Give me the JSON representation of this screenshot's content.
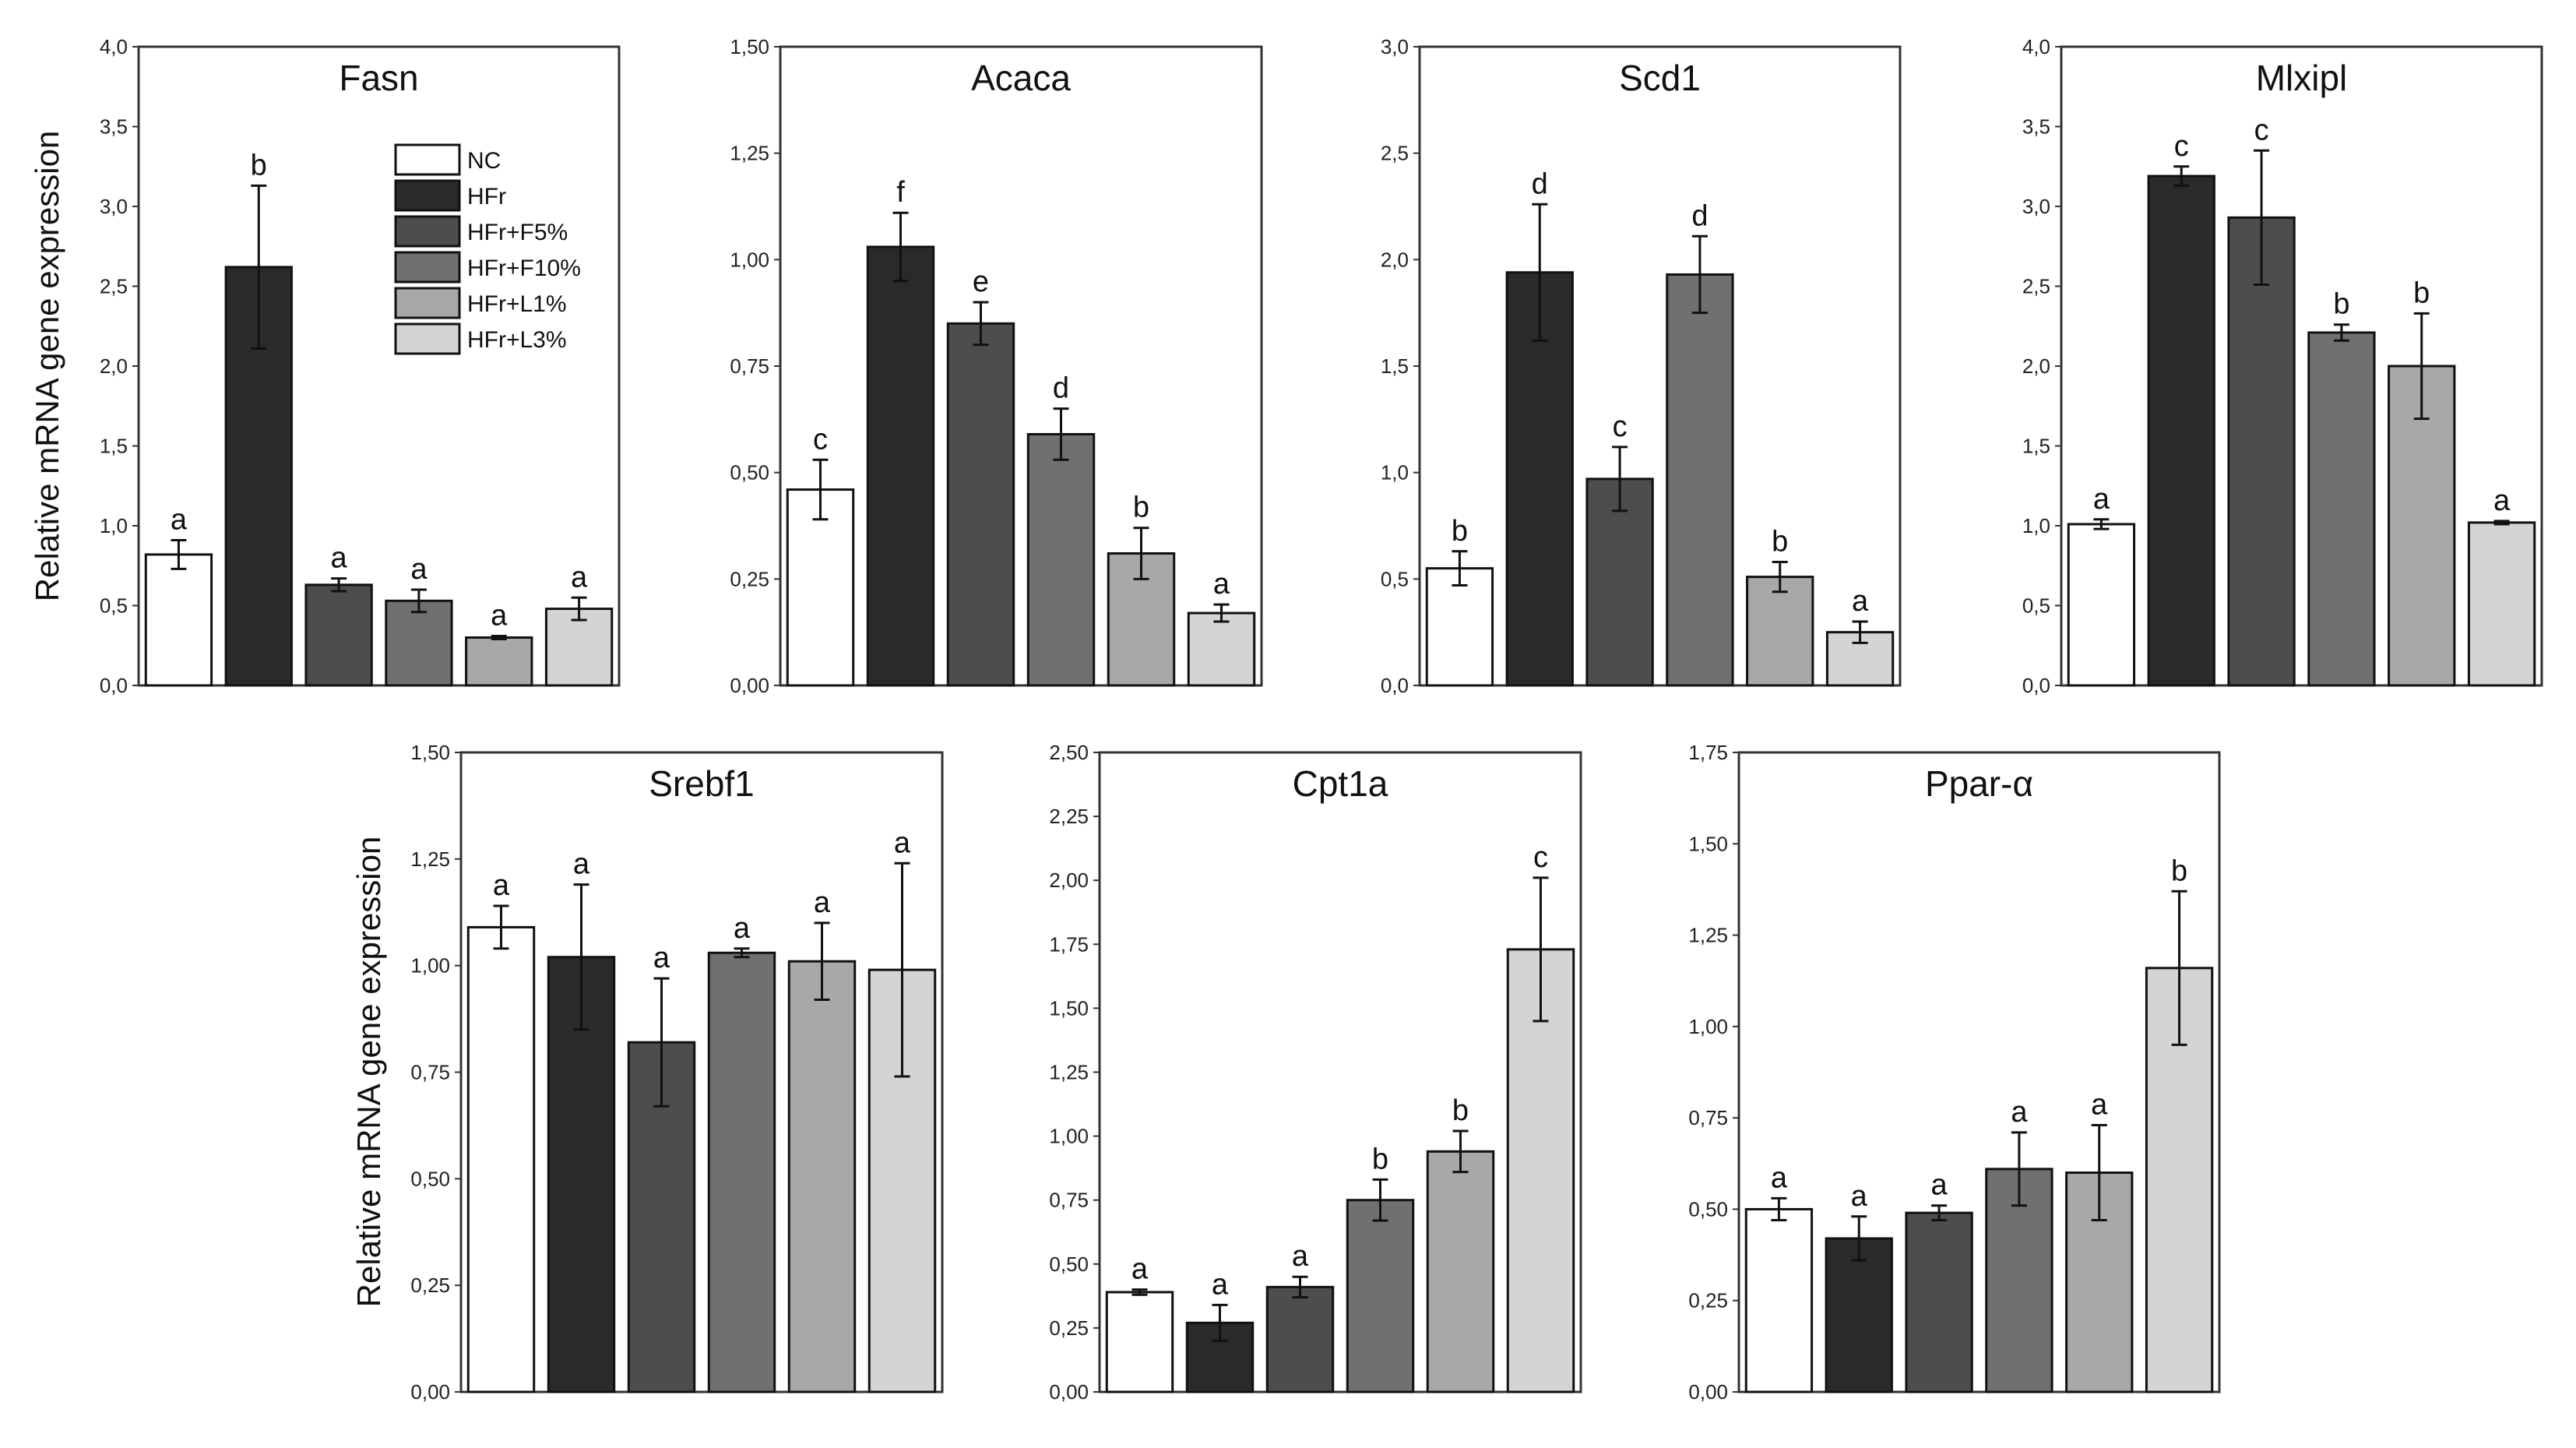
{
  "legend": [
    {
      "label": "NC",
      "color": "#ffffff"
    },
    {
      "label": "HFr",
      "color": "#2a2a2a"
    },
    {
      "label": "HFr+F5%",
      "color": "#4d4d4d"
    },
    {
      "label": "HFr+F10%",
      "color": "#707070"
    },
    {
      "label": "HFr+L1%",
      "color": "#a8a8a8"
    },
    {
      "label": "HFr+L3%",
      "color": "#d4d4d4"
    }
  ],
  "ylabel": "Relative mRNA gene expression",
  "chart_data": [
    {
      "type": "bar",
      "title": "Fasn",
      "categories": [
        "NC",
        "HFr",
        "HFr+F5%",
        "HFr+F10%",
        "HFr+L1%",
        "HFr+L3%"
      ],
      "values": [
        0.82,
        2.62,
        0.63,
        0.53,
        0.3,
        0.48
      ],
      "errors": [
        0.09,
        0.51,
        0.04,
        0.07,
        0.01,
        0.07
      ],
      "letters": [
        "a",
        "b",
        "a",
        "a",
        "a",
        "a"
      ],
      "ylim": [
        0,
        4.0
      ],
      "yticks": [
        "0,0",
        "0,5",
        "1,0",
        "1,5",
        "2,0",
        "2,5",
        "3,0",
        "3,5",
        "4,0"
      ],
      "ylabel": "Relative mRNA gene expression",
      "legend": "top-right"
    },
    {
      "type": "bar",
      "title": "Acaca",
      "categories": [
        "NC",
        "HFr",
        "HFr+F5%",
        "HFr+F10%",
        "HFr+L1%",
        "HFr+L3%"
      ],
      "values": [
        0.46,
        1.03,
        0.85,
        0.59,
        0.31,
        0.17
      ],
      "errors": [
        0.07,
        0.08,
        0.05,
        0.06,
        0.06,
        0.02
      ],
      "letters": [
        "c",
        "f",
        "e",
        "d",
        "b",
        "a"
      ],
      "ylim": [
        0,
        1.5
      ],
      "yticks": [
        "0,00",
        "0,25",
        "0,50",
        "0,75",
        "1,00",
        "1,25",
        "1,50"
      ]
    },
    {
      "type": "bar",
      "title": "Scd1",
      "categories": [
        "NC",
        "HFr",
        "HFr+F5%",
        "HFr+F10%",
        "HFr+L1%",
        "HFr+L3%"
      ],
      "values": [
        0.55,
        1.94,
        0.97,
        1.93,
        0.51,
        0.25
      ],
      "errors": [
        0.08,
        0.32,
        0.15,
        0.18,
        0.07,
        0.05
      ],
      "letters": [
        "b",
        "d",
        "c",
        "d",
        "b",
        "a"
      ],
      "ylim": [
        0,
        3.0
      ],
      "yticks": [
        "0,0",
        "0,5",
        "1,0",
        "1,5",
        "2,0",
        "2,5",
        "3,0"
      ]
    },
    {
      "type": "bar",
      "title": "Mlxipl",
      "categories": [
        "NC",
        "HFr",
        "HFr+F5%",
        "HFr+F10%",
        "HFr+L1%",
        "HFr+L3%"
      ],
      "values": [
        1.01,
        3.19,
        2.93,
        2.21,
        2.0,
        1.02
      ],
      "errors": [
        0.03,
        0.06,
        0.42,
        0.05,
        0.33,
        0.01
      ],
      "letters": [
        "a",
        "c",
        "c",
        "b",
        "b",
        "a"
      ],
      "ylim": [
        0,
        4.0
      ],
      "yticks": [
        "0,0",
        "0,5",
        "1,0",
        "1,5",
        "2,0",
        "2,5",
        "3,0",
        "3,5",
        "4,0"
      ]
    },
    {
      "type": "bar",
      "title": "Srebf1",
      "categories": [
        "NC",
        "HFr",
        "HFr+F5%",
        "HFr+F10%",
        "HFr+L1%",
        "HFr+L3%"
      ],
      "values": [
        1.09,
        1.02,
        0.82,
        1.03,
        1.01,
        0.99
      ],
      "errors": [
        0.05,
        0.17,
        0.15,
        0.01,
        0.09,
        0.25
      ],
      "letters": [
        "a",
        "a",
        "a",
        "a",
        "a",
        "a"
      ],
      "ylim": [
        0,
        1.5
      ],
      "yticks": [
        "0,00",
        "0,25",
        "0,50",
        "0,75",
        "1,00",
        "1,25",
        "1,50"
      ],
      "ylabel": "Relative mRNA gene expression"
    },
    {
      "type": "bar",
      "title": "Cpt1a",
      "categories": [
        "NC",
        "HFr",
        "HFr+F5%",
        "HFr+F10%",
        "HFr+L1%",
        "HFr+L3%"
      ],
      "values": [
        0.39,
        0.27,
        0.41,
        0.75,
        0.94,
        1.73
      ],
      "errors": [
        0.01,
        0.07,
        0.04,
        0.08,
        0.08,
        0.28
      ],
      "letters": [
        "a",
        "a",
        "a",
        "b",
        "b",
        "c"
      ],
      "ylim": [
        0,
        2.5
      ],
      "yticks": [
        "0,00",
        "0,25",
        "0,50",
        "0,75",
        "1,00",
        "1,25",
        "1,50",
        "1,75",
        "2,00",
        "2,25",
        "2,50"
      ]
    },
    {
      "type": "bar",
      "title": "Ppar-α",
      "categories": [
        "NC",
        "HFr",
        "HFr+F5%",
        "HFr+F10%",
        "HFr+L1%",
        "HFr+L3%"
      ],
      "values": [
        0.5,
        0.42,
        0.49,
        0.61,
        0.6,
        1.16
      ],
      "errors": [
        0.03,
        0.06,
        0.02,
        0.1,
        0.13,
        0.21
      ],
      "letters": [
        "a",
        "a",
        "a",
        "a",
        "a",
        "b"
      ],
      "ylim": [
        0,
        1.75
      ],
      "yticks": [
        "0,00",
        "0,25",
        "0,50",
        "0,75",
        "1,00",
        "1,25",
        "1,50",
        "1,75"
      ]
    }
  ]
}
